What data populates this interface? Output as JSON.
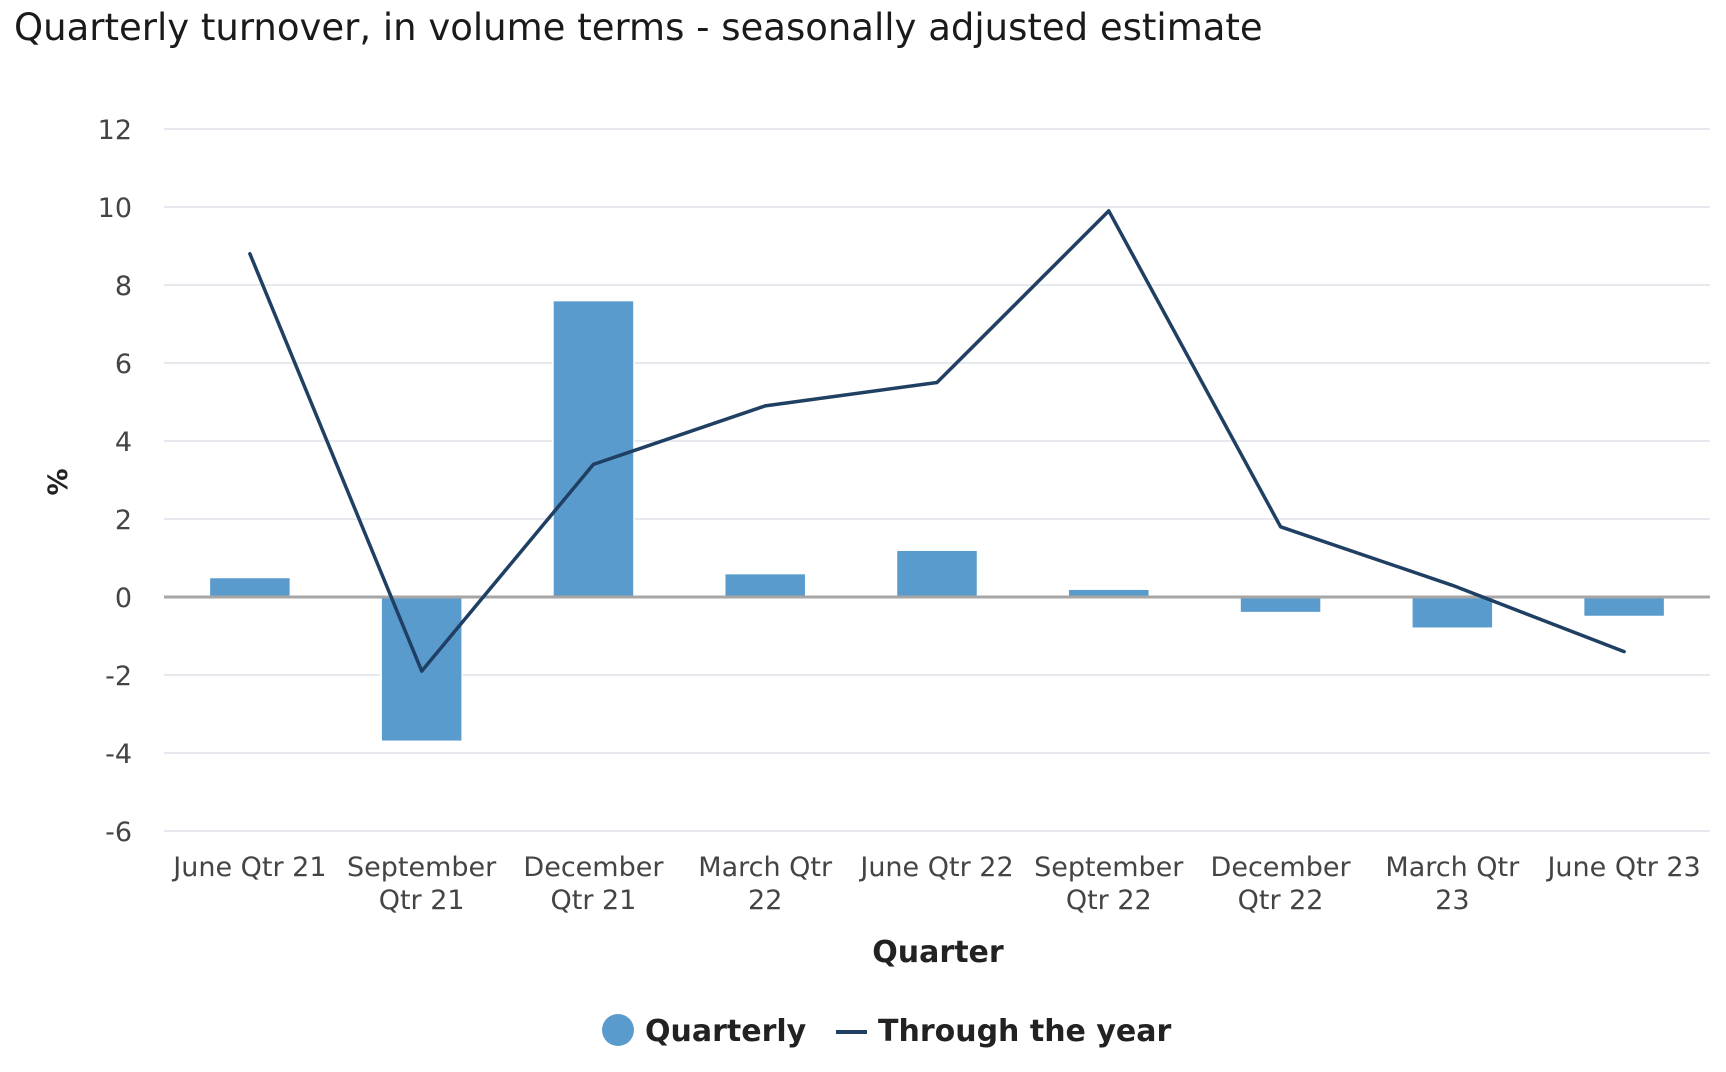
{
  "chart_data": {
    "type": "bar",
    "title": "Quarterly turnover, in volume terms - seasonally adjusted estimate",
    "xlabel": "Quarter",
    "ylabel": "%",
    "ylim": [
      -6,
      12
    ],
    "yticks": [
      12,
      10,
      8,
      6,
      4,
      2,
      0,
      -2,
      -4,
      -6
    ],
    "ytick_labels": [
      "12",
      "10",
      "8",
      "6",
      "4",
      "2",
      "0",
      "-2",
      "-4",
      "-6"
    ],
    "grid": true,
    "legend_position": "bottom-center",
    "categories": [
      [
        "June Qtr 21"
      ],
      [
        "September",
        "Qtr 21"
      ],
      [
        "December",
        "Qtr 21"
      ],
      [
        "March Qtr",
        "22"
      ],
      [
        "June Qtr 22"
      ],
      [
        "September",
        "Qtr 22"
      ],
      [
        "December",
        "Qtr 22"
      ],
      [
        "March Qtr",
        "23"
      ],
      [
        "June Qtr 23"
      ]
    ],
    "series": [
      {
        "name": "Quarterly",
        "type": "bar",
        "color": "#5a9bcd",
        "values": [
          0.5,
          -3.7,
          7.6,
          0.6,
          1.2,
          0.2,
          -0.4,
          -0.8,
          -0.5
        ]
      },
      {
        "name": "Through the year",
        "type": "line",
        "color": "#1f3f63",
        "values": [
          8.8,
          -1.9,
          3.4,
          4.9,
          5.5,
          9.9,
          1.8,
          0.3,
          -1.4
        ]
      }
    ],
    "colors": {
      "grid": "#dde3ea",
      "zero_line": "#a6a6a6",
      "tick_text": "#444444",
      "label_text": "#222222"
    }
  }
}
